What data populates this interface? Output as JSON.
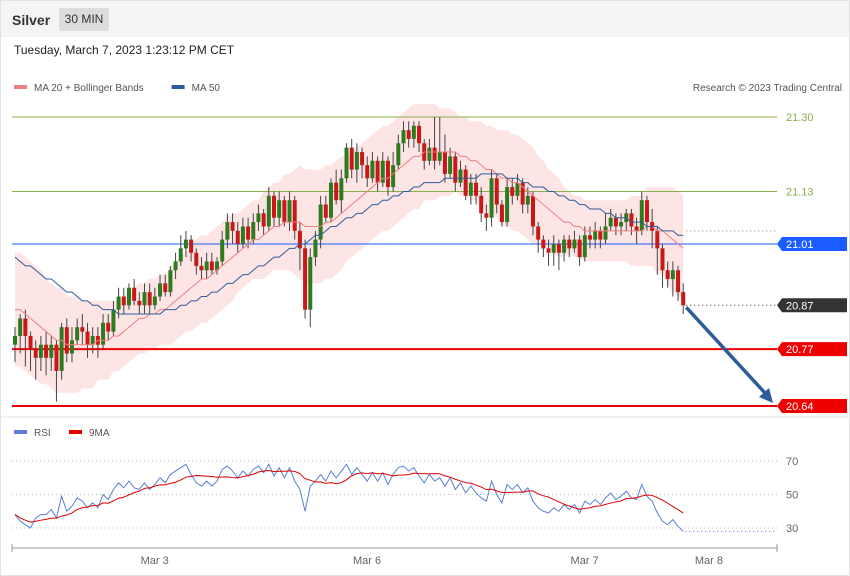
{
  "header": {
    "title": "Silver",
    "timeframe": "30 MIN"
  },
  "timestamp": "Tuesday, March 7, 2023 1:23:12 PM CET",
  "legend": {
    "main": [
      {
        "label": "MA 20 + Bollinger Bands",
        "color": "#f08080"
      },
      {
        "label": "MA 50",
        "color": "#2e5b9a"
      }
    ],
    "rsi": [
      {
        "label": "RSI",
        "color": "#5b7fd6"
      },
      {
        "label": "9MA",
        "color": "#e00000"
      }
    ]
  },
  "credit": "Research © 2023 Trading Central",
  "chart_data": {
    "type": "candlestick",
    "price_range": [
      20.62,
      21.33
    ],
    "levels": [
      {
        "value": 21.3,
        "label": "21.30",
        "kind": "resistance",
        "color": "#8ab04a"
      },
      {
        "value": 21.13,
        "label": "21.13",
        "kind": "resistance",
        "color": "#8ab04a"
      },
      {
        "value": 21.01,
        "label": "21.01",
        "kind": "pivot",
        "color": "#1a5cff"
      },
      {
        "value": 20.87,
        "label": "20.87",
        "kind": "last",
        "color": "#333333"
      },
      {
        "value": 20.77,
        "label": "20.77",
        "kind": "support",
        "color": "#ee0000"
      },
      {
        "value": 20.64,
        "label": "20.64",
        "kind": "support",
        "color": "#ee0000"
      }
    ],
    "x_labels": [
      {
        "label": "Mar 3",
        "index": 26
      },
      {
        "label": "Mar 6",
        "index": 67
      },
      {
        "label": "Mar 7",
        "index": 109
      },
      {
        "label": "Mar 8",
        "index": 133
      }
    ],
    "rsi_levels": [
      70,
      50,
      30
    ],
    "arrow": {
      "from": 20.87,
      "to": 20.64
    },
    "candles": [
      [
        20.78,
        20.8,
        20.82,
        20.74
      ],
      [
        20.8,
        20.84,
        20.85,
        20.76
      ],
      [
        20.84,
        20.8,
        20.86,
        20.73
      ],
      [
        20.8,
        20.77,
        20.81,
        20.72
      ],
      [
        20.77,
        20.75,
        20.79,
        20.7
      ],
      [
        20.75,
        20.78,
        20.8,
        20.72
      ],
      [
        20.78,
        20.75,
        20.81,
        20.71
      ],
      [
        20.75,
        20.78,
        20.8,
        20.72
      ],
      [
        20.78,
        20.72,
        20.79,
        20.65
      ],
      [
        20.72,
        20.82,
        20.83,
        20.7
      ],
      [
        20.82,
        20.76,
        20.84,
        20.74
      ],
      [
        20.76,
        20.79,
        20.82,
        20.74
      ],
      [
        20.79,
        20.82,
        20.84,
        20.78
      ],
      [
        20.82,
        20.81,
        20.85,
        20.78
      ],
      [
        20.81,
        20.78,
        20.83,
        20.75
      ],
      [
        20.78,
        20.8,
        20.82,
        20.76
      ],
      [
        20.8,
        20.78,
        20.82,
        20.75
      ],
      [
        20.78,
        20.83,
        20.85,
        20.77
      ],
      [
        20.83,
        20.81,
        20.85,
        20.79
      ],
      [
        20.81,
        20.86,
        20.88,
        20.8
      ],
      [
        20.86,
        20.89,
        20.91,
        20.84
      ],
      [
        20.89,
        20.87,
        20.91,
        20.85
      ],
      [
        20.87,
        20.91,
        20.92,
        20.86
      ],
      [
        20.91,
        20.88,
        20.93,
        20.87
      ],
      [
        20.88,
        20.87,
        20.9,
        20.85
      ],
      [
        20.87,
        20.9,
        20.92,
        20.85
      ],
      [
        20.9,
        20.87,
        20.92,
        20.85
      ],
      [
        20.87,
        20.89,
        20.91,
        20.86
      ],
      [
        20.89,
        20.92,
        20.94,
        20.88
      ],
      [
        20.92,
        20.9,
        20.94,
        20.89
      ],
      [
        20.9,
        20.95,
        20.96,
        20.89
      ],
      [
        20.95,
        20.97,
        20.99,
        20.93
      ],
      [
        20.97,
        21.0,
        21.03,
        20.96
      ],
      [
        21.0,
        21.02,
        21.04,
        20.98
      ],
      [
        21.02,
        20.99,
        21.03,
        20.97
      ],
      [
        20.99,
        20.96,
        21.0,
        20.94
      ],
      [
        20.96,
        20.95,
        20.98,
        20.93
      ],
      [
        20.95,
        20.97,
        20.99,
        20.93
      ],
      [
        20.97,
        20.95,
        20.99,
        20.94
      ],
      [
        20.95,
        20.97,
        20.98,
        20.94
      ],
      [
        20.97,
        21.02,
        21.04,
        20.96
      ],
      [
        21.02,
        21.06,
        21.08,
        21.0
      ],
      [
        21.06,
        21.04,
        21.08,
        21.01
      ],
      [
        21.04,
        21.01,
        21.06,
        20.99
      ],
      [
        21.01,
        21.05,
        21.07,
        21.0
      ],
      [
        21.05,
        21.02,
        21.07,
        21.0
      ],
      [
        21.02,
        21.06,
        21.08,
        21.01
      ],
      [
        21.06,
        21.08,
        21.1,
        21.04
      ],
      [
        21.08,
        21.05,
        21.09,
        21.03
      ],
      [
        21.05,
        21.12,
        21.14,
        21.04
      ],
      [
        21.12,
        21.07,
        21.13,
        21.05
      ],
      [
        21.07,
        21.11,
        21.13,
        21.05
      ],
      [
        21.11,
        21.06,
        21.12,
        21.05
      ],
      [
        21.06,
        21.11,
        21.13,
        21.04
      ],
      [
        21.11,
        21.04,
        21.12,
        21.02
      ],
      [
        21.04,
        21.0,
        21.06,
        20.95
      ],
      [
        21.0,
        20.86,
        21.02,
        20.84
      ],
      [
        20.86,
        20.98,
        21.0,
        20.82
      ],
      [
        20.98,
        21.02,
        21.04,
        20.96
      ],
      [
        21.02,
        21.1,
        21.12,
        21.0
      ],
      [
        21.1,
        21.07,
        21.12,
        21.06
      ],
      [
        21.07,
        21.15,
        21.16,
        21.06
      ],
      [
        21.15,
        21.11,
        21.18,
        21.1
      ],
      [
        21.11,
        21.16,
        21.18,
        21.08
      ],
      [
        21.16,
        21.23,
        21.24,
        21.15
      ],
      [
        21.23,
        21.18,
        21.25,
        21.16
      ],
      [
        21.18,
        21.22,
        21.24,
        21.15
      ],
      [
        21.22,
        21.19,
        21.23,
        21.16
      ],
      [
        21.19,
        21.16,
        21.21,
        21.14
      ],
      [
        21.16,
        21.2,
        21.22,
        21.15
      ],
      [
        21.2,
        21.15,
        21.21,
        21.13
      ],
      [
        21.15,
        21.2,
        21.22,
        21.14
      ],
      [
        21.2,
        21.14,
        21.21,
        21.12
      ],
      [
        21.14,
        21.19,
        21.22,
        21.13
      ],
      [
        21.19,
        21.24,
        21.26,
        21.18
      ],
      [
        21.24,
        21.27,
        21.29,
        21.22
      ],
      [
        21.27,
        21.25,
        21.29,
        21.23
      ],
      [
        21.25,
        21.28,
        21.29,
        21.23
      ],
      [
        21.28,
        21.24,
        21.29,
        21.22
      ],
      [
        21.24,
        21.2,
        21.25,
        21.18
      ],
      [
        21.2,
        21.23,
        21.25,
        21.19
      ],
      [
        21.23,
        21.2,
        21.3,
        21.18
      ],
      [
        21.2,
        21.22,
        21.3,
        21.19
      ],
      [
        21.22,
        21.17,
        21.26,
        21.15
      ],
      [
        21.17,
        21.21,
        21.23,
        21.16
      ],
      [
        21.21,
        21.15,
        21.22,
        21.13
      ],
      [
        21.15,
        21.18,
        21.2,
        21.14
      ],
      [
        21.18,
        21.12,
        21.19,
        21.11
      ],
      [
        21.12,
        21.15,
        21.17,
        21.1
      ],
      [
        21.15,
        21.12,
        21.17,
        21.1
      ],
      [
        21.12,
        21.08,
        21.14,
        21.06
      ],
      [
        21.08,
        21.07,
        21.1,
        21.04
      ],
      [
        21.07,
        21.16,
        21.18,
        21.05
      ],
      [
        21.16,
        21.1,
        21.17,
        21.08
      ],
      [
        21.1,
        21.06,
        21.11,
        21.05
      ],
      [
        21.06,
        21.14,
        21.16,
        21.05
      ],
      [
        21.14,
        21.12,
        21.16,
        21.1
      ],
      [
        21.12,
        21.15,
        21.17,
        21.11
      ],
      [
        21.15,
        21.1,
        21.16,
        21.08
      ],
      [
        21.1,
        21.12,
        21.14,
        21.08
      ],
      [
        21.12,
        21.05,
        21.13,
        21.03
      ],
      [
        21.05,
        21.02,
        21.06,
        20.99
      ],
      [
        21.02,
        21.0,
        21.03,
        20.98
      ],
      [
        21.0,
        20.99,
        21.02,
        20.96
      ],
      [
        20.99,
        21.01,
        21.03,
        20.96
      ],
      [
        21.01,
        20.99,
        21.02,
        20.95
      ],
      [
        20.99,
        21.02,
        21.03,
        20.97
      ],
      [
        21.02,
        21.0,
        21.03,
        20.98
      ],
      [
        21.0,
        21.02,
        21.04,
        20.99
      ],
      [
        21.02,
        20.98,
        21.03,
        20.96
      ],
      [
        20.98,
        21.03,
        21.05,
        20.97
      ],
      [
        21.03,
        21.02,
        21.05,
        21.0
      ],
      [
        21.02,
        21.04,
        21.06,
        21.0
      ],
      [
        21.04,
        21.02,
        21.05,
        21.0
      ],
      [
        21.02,
        21.05,
        21.08,
        21.01
      ],
      [
        21.05,
        21.07,
        21.09,
        21.04
      ],
      [
        21.07,
        21.05,
        21.08,
        21.03
      ],
      [
        21.05,
        21.06,
        21.08,
        21.03
      ],
      [
        21.06,
        21.08,
        21.09,
        21.04
      ],
      [
        21.08,
        21.05,
        21.09,
        21.03
      ],
      [
        21.05,
        21.04,
        21.07,
        21.01
      ],
      [
        21.04,
        21.11,
        21.13,
        21.03
      ],
      [
        21.11,
        21.06,
        21.12,
        21.04
      ],
      [
        21.06,
        21.04,
        21.09,
        21.0
      ],
      [
        21.04,
        21.0,
        21.05,
        20.94
      ],
      [
        21.0,
        20.95,
        21.01,
        20.91
      ],
      [
        20.95,
        20.93,
        20.97,
        20.91
      ],
      [
        20.93,
        20.95,
        20.97,
        20.89
      ],
      [
        20.95,
        20.9,
        20.96,
        20.88
      ],
      [
        20.9,
        20.87,
        20.92,
        20.85
      ]
    ],
    "ma20": [
      20.86,
      20.86,
      20.85,
      20.84,
      20.83,
      20.82,
      20.81,
      20.8,
      20.79,
      20.79,
      20.78,
      20.78,
      20.78,
      20.78,
      20.78,
      20.78,
      20.79,
      20.79,
      20.79,
      20.8,
      20.8,
      20.81,
      20.82,
      20.83,
      20.84,
      20.84,
      20.85,
      20.85,
      20.86,
      20.86,
      20.87,
      20.88,
      20.89,
      20.9,
      20.91,
      20.92,
      20.93,
      20.93,
      20.94,
      20.95,
      20.96,
      20.97,
      20.98,
      20.99,
      21.0,
      21.01,
      21.02,
      21.02,
      21.03,
      21.04,
      21.05,
      21.05,
      21.06,
      21.06,
      21.06,
      21.06,
      21.05,
      21.05,
      21.05,
      21.05,
      21.06,
      21.06,
      21.07,
      21.08,
      21.09,
      21.1,
      21.11,
      21.12,
      21.13,
      21.14,
      21.15,
      21.16,
      21.16,
      21.17,
      21.18,
      21.19,
      21.2,
      21.21,
      21.21,
      21.22,
      21.22,
      21.22,
      21.22,
      21.22,
      21.22,
      21.22,
      21.21,
      21.21,
      21.2,
      21.2,
      21.19,
      21.18,
      21.18,
      21.17,
      21.16,
      21.16,
      21.15,
      21.15,
      21.14,
      21.13,
      21.12,
      21.11,
      21.1,
      21.09,
      21.08,
      21.07,
      21.06,
      21.06,
      21.05,
      21.05,
      21.04,
      21.04,
      21.04,
      21.04,
      21.04,
      21.04,
      21.04,
      21.04,
      21.04,
      21.04,
      21.04,
      21.04,
      21.05,
      21.05,
      21.04,
      21.04,
      21.03,
      21.02,
      21.01,
      21.0
    ],
    "ma50": [
      20.98,
      20.97,
      20.96,
      20.96,
      20.95,
      20.94,
      20.93,
      20.93,
      20.92,
      20.91,
      20.9,
      20.9,
      20.89,
      20.88,
      20.88,
      20.87,
      20.87,
      20.86,
      20.86,
      20.86,
      20.85,
      20.85,
      20.85,
      20.85,
      20.85,
      20.85,
      20.85,
      20.85,
      20.85,
      20.86,
      20.86,
      20.86,
      20.87,
      20.87,
      20.88,
      20.88,
      20.89,
      20.89,
      20.9,
      20.9,
      20.91,
      20.92,
      20.92,
      20.93,
      20.94,
      20.94,
      20.95,
      20.96,
      20.96,
      20.97,
      20.98,
      20.98,
      20.99,
      21.0,
      21.0,
      21.01,
      21.01,
      21.02,
      21.03,
      21.03,
      21.04,
      21.05,
      21.05,
      21.06,
      21.07,
      21.07,
      21.08,
      21.08,
      21.09,
      21.1,
      21.1,
      21.11,
      21.11,
      21.12,
      21.12,
      21.13,
      21.13,
      21.14,
      21.14,
      21.15,
      21.15,
      21.15,
      21.15,
      21.16,
      21.16,
      21.16,
      21.16,
      21.16,
      21.16,
      21.16,
      21.17,
      21.17,
      21.17,
      21.17,
      21.17,
      21.16,
      21.16,
      21.16,
      21.15,
      21.15,
      21.14,
      21.14,
      21.14,
      21.13,
      21.13,
      21.12,
      21.12,
      21.11,
      21.11,
      21.1,
      21.1,
      21.09,
      21.09,
      21.09,
      21.08,
      21.08,
      21.07,
      21.07,
      21.07,
      21.06,
      21.06,
      21.06,
      21.05,
      21.05,
      21.05,
      21.04,
      21.04,
      21.04,
      21.03,
      21.03
    ],
    "bb_width": [
      0.13,
      0.13,
      0.13,
      0.13,
      0.13,
      0.13,
      0.12,
      0.12,
      0.12,
      0.12,
      0.11,
      0.11,
      0.11,
      0.1,
      0.1,
      0.1,
      0.09,
      0.09,
      0.09,
      0.08,
      0.08,
      0.08,
      0.08,
      0.08,
      0.08,
      0.08,
      0.08,
      0.08,
      0.08,
      0.08,
      0.09,
      0.09,
      0.09,
      0.09,
      0.1,
      0.1,
      0.1,
      0.1,
      0.1,
      0.1,
      0.1,
      0.1,
      0.1,
      0.09,
      0.09,
      0.09,
      0.09,
      0.09,
      0.1,
      0.1,
      0.1,
      0.1,
      0.11,
      0.11,
      0.12,
      0.13,
      0.13,
      0.13,
      0.13,
      0.13,
      0.13,
      0.13,
      0.13,
      0.13,
      0.12,
      0.12,
      0.12,
      0.12,
      0.12,
      0.12,
      0.12,
      0.12,
      0.12,
      0.12,
      0.12,
      0.12,
      0.12,
      0.12,
      0.12,
      0.11,
      0.11,
      0.11,
      0.1,
      0.1,
      0.1,
      0.09,
      0.09,
      0.09,
      0.09,
      0.09,
      0.1,
      0.1,
      0.1,
      0.1,
      0.11,
      0.11,
      0.11,
      0.11,
      0.11,
      0.11,
      0.11,
      0.1,
      0.1,
      0.09,
      0.09,
      0.09,
      0.08,
      0.07,
      0.07,
      0.07,
      0.07,
      0.07,
      0.07,
      0.07,
      0.07,
      0.07,
      0.07,
      0.07,
      0.07,
      0.08,
      0.08,
      0.08,
      0.09,
      0.09,
      0.1,
      0.1,
      0.11,
      0.12,
      0.12,
      0.12
    ],
    "rsi": [
      38,
      34,
      32,
      30,
      36,
      38,
      38,
      41,
      36,
      49,
      40,
      43,
      48,
      46,
      42,
      45,
      42,
      50,
      47,
      53,
      57,
      54,
      58,
      54,
      53,
      57,
      53,
      56,
      60,
      57,
      62,
      64,
      66,
      68,
      62,
      57,
      55,
      58,
      55,
      58,
      65,
      67,
      64,
      60,
      64,
      61,
      65,
      67,
      63,
      68,
      61,
      66,
      60,
      66,
      58,
      53,
      40,
      55,
      58,
      62,
      58,
      64,
      60,
      64,
      68,
      62,
      66,
      62,
      58,
      63,
      58,
      63,
      56,
      62,
      66,
      67,
      64,
      66,
      61,
      57,
      62,
      58,
      60,
      55,
      60,
      53,
      57,
      51,
      55,
      51,
      48,
      46,
      58,
      50,
      45,
      56,
      53,
      56,
      51,
      54,
      46,
      42,
      40,
      39,
      42,
      40,
      44,
      41,
      44,
      39,
      46,
      44,
      47,
      44,
      48,
      51,
      47,
      49,
      52,
      48,
      47,
      56,
      49,
      46,
      39,
      34,
      32,
      35,
      31,
      28
    ]
  }
}
